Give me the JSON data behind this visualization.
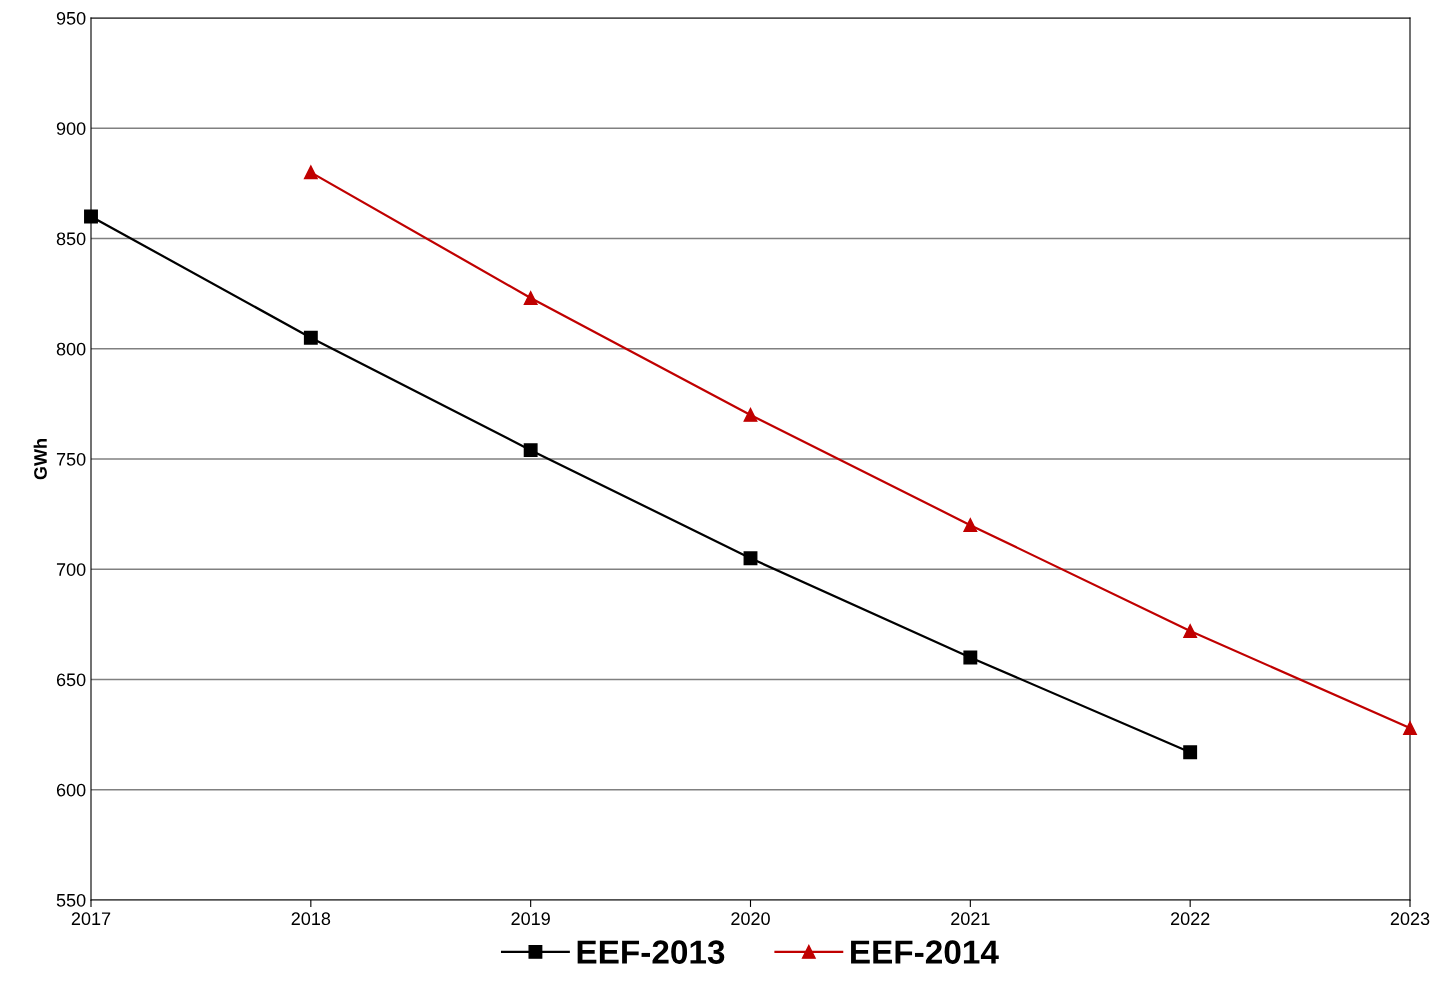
{
  "chart_data": {
    "type": "line",
    "ylabel": "GWh",
    "x": [
      2017,
      2018,
      2019,
      2020,
      2021,
      2022,
      2023
    ],
    "series": [
      {
        "name": "EEF-2013",
        "color": "#000000",
        "marker": "square",
        "values": [
          860,
          805,
          754,
          705,
          660,
          617,
          null
        ]
      },
      {
        "name": "EEF-2014",
        "color": "#c00000",
        "marker": "triangle",
        "values": [
          null,
          880,
          823,
          770,
          720,
          672,
          628
        ]
      }
    ],
    "xlim": [
      2017,
      2023
    ],
    "xticks": [
      2017,
      2018,
      2019,
      2020,
      2021,
      2022,
      2023
    ],
    "ylim": [
      550,
      950
    ],
    "yticks": [
      550,
      600,
      650,
      700,
      750,
      800,
      850,
      900,
      950
    ],
    "grid": "y",
    "legend": "bottom",
    "line_style": "solid"
  }
}
